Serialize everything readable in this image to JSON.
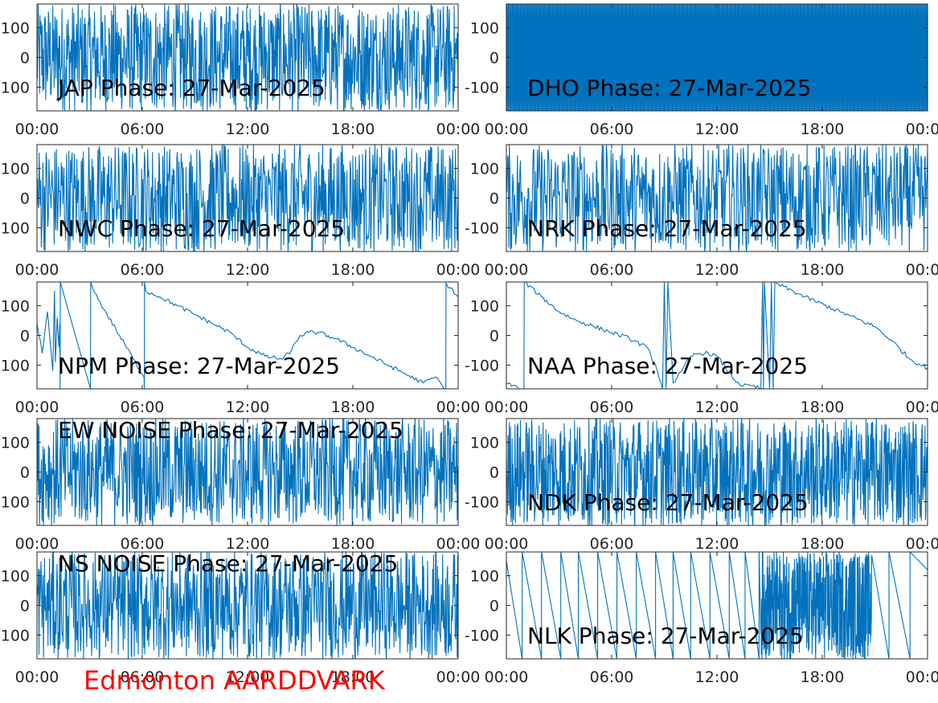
{
  "figure_label": "Edmonton AARDDVARK",
  "colors": {
    "trace": "#0072bd",
    "axis": "#262626",
    "label": "#000000",
    "footer": "#ff0000"
  },
  "x_ticks": [
    "00:00",
    "06:00",
    "12:00",
    "18:00",
    "00:00"
  ],
  "y_ticks": [
    "100",
    "0",
    "-100"
  ],
  "chart_data": [
    {
      "type": "line",
      "title": "JAP Phase: 27-Mar-2025",
      "xlim": [
        "00:00",
        "24:00"
      ],
      "ylim": [
        -180,
        180
      ],
      "style": "noise",
      "density": 320,
      "x_tick_labels": [
        "00:00",
        "06:00",
        "12:00",
        "18:00",
        "00:00"
      ],
      "y_tick_labels": [
        "100",
        "0",
        "100"
      ]
    },
    {
      "type": "line",
      "title": "DHO Phase: 27-Mar-2025",
      "xlim": [
        "00:00",
        "24:00"
      ],
      "ylim": [
        -180,
        180
      ],
      "style": "wrap",
      "density": 420,
      "x_tick_labels": [
        "00:00",
        "06:00",
        "12:00",
        "18:00",
        "00:00"
      ],
      "y_tick_labels": [
        "100",
        "0",
        "-100"
      ]
    },
    {
      "type": "line",
      "title": "NWC Phase: 27-Mar-2025",
      "xlim": [
        "00:00",
        "24:00"
      ],
      "ylim": [
        -180,
        180
      ],
      "style": "noise",
      "density": 260,
      "x_tick_labels": [
        "00:00",
        "06:00",
        "12:00",
        "18:00",
        "00:00"
      ],
      "y_tick_labels": [
        "100",
        "0",
        "100"
      ]
    },
    {
      "type": "line",
      "title": "NRK Phase: 27-Mar-2025",
      "xlim": [
        "00:00",
        "24:00"
      ],
      "ylim": [
        -180,
        180
      ],
      "style": "noise",
      "density": 240,
      "x_tick_labels": [
        "00:00",
        "06:00",
        "12:00",
        "18:00",
        "00:00"
      ],
      "y_tick_labels": [
        "100",
        "0",
        "-100"
      ]
    },
    {
      "type": "line",
      "title": "NPM Phase: 27-Mar-2025",
      "xlim": [
        "00:00",
        "24:00"
      ],
      "ylim": [
        -180,
        180
      ],
      "style": "path",
      "x": [
        0,
        0.3,
        0.6,
        0.9,
        1.0,
        1.05,
        1.15,
        1.25,
        1.3,
        1.32,
        1.33,
        3.05,
        3.06,
        3.5,
        4.5,
        5.5,
        6.1,
        6.12,
        6.13,
        6.2,
        7,
        8,
        9,
        10,
        11,
        12,
        13,
        14,
        14.5,
        15,
        15.5,
        16,
        17,
        18,
        19,
        20,
        21,
        22,
        22.7,
        23,
        23.2,
        23.3,
        23.31,
        23.32,
        24
      ],
      "y": [
        40,
        -60,
        80,
        -120,
        150,
        -90,
        60,
        -40,
        40,
        -180,
        180,
        -180,
        180,
        120,
        20,
        -80,
        -140,
        -180,
        180,
        150,
        130,
        100,
        70,
        40,
        10,
        -40,
        -70,
        -80,
        -50,
        0,
        10,
        10,
        -10,
        -40,
        -70,
        -100,
        -130,
        -160,
        -140,
        -160,
        -180,
        -180,
        180,
        175,
        130
      ]
    },
    {
      "type": "line",
      "title": "NAA Phase: 27-Mar-2025",
      "xlim": [
        "00:00",
        "24:00"
      ],
      "ylim": [
        -180,
        180
      ],
      "style": "path",
      "x": [
        0,
        0.8,
        1.0,
        1.02,
        1.03,
        2,
        3,
        4,
        5,
        6,
        7,
        8,
        8.5,
        8.9,
        9.0,
        9.1,
        9.2,
        9.5,
        10,
        10.5,
        11,
        11.5,
        12,
        12.5,
        13,
        13.5,
        14,
        14.5,
        14.6,
        14.65,
        14.7,
        15,
        15.1,
        15.2,
        15.3,
        15.35,
        15.4,
        17,
        19,
        21,
        22,
        23,
        24
      ],
      "y": [
        -160,
        -180,
        -180,
        180,
        180,
        130,
        80,
        50,
        30,
        10,
        -10,
        -40,
        -100,
        -180,
        180,
        -180,
        180,
        -160,
        -120,
        -70,
        -60,
        -60,
        -70,
        -110,
        -150,
        -170,
        -170,
        -180,
        180,
        -180,
        180,
        -180,
        180,
        -180,
        180,
        180,
        175,
        130,
        80,
        30,
        -20,
        -80,
        -110
      ]
    },
    {
      "type": "line",
      "title": "EW NOISE Phase: 27-Mar-2025",
      "xlim": [
        "00:00",
        "24:00"
      ],
      "ylim": [
        -180,
        180
      ],
      "style": "noise",
      "density": 280,
      "x_tick_labels": [
        "00:00",
        "06:00",
        "12:00",
        "18:00",
        "00:00"
      ],
      "y_tick_labels": [
        "100",
        "0",
        "100"
      ]
    },
    {
      "type": "line",
      "title": "NDK Phase: 27-Mar-2025",
      "xlim": [
        "00:00",
        "24:00"
      ],
      "ylim": [
        -180,
        180
      ],
      "style": "noise",
      "density": 340,
      "x_tick_labels": [
        "00:00",
        "06:00",
        "12:00",
        "18:00",
        "00:00"
      ],
      "y_tick_labels": [
        "100",
        "0",
        "-100"
      ]
    },
    {
      "type": "line",
      "title": "NS NOISE Phase: 27-Mar-2025",
      "xlim": [
        "00:00",
        "24:00"
      ],
      "ylim": [
        -180,
        180
      ],
      "style": "noise",
      "density": 280,
      "x_tick_labels": [
        "00:00",
        "06:00",
        "12:00",
        "18:00",
        "00:00"
      ],
      "y_tick_labels": [
        "100",
        "0",
        "100"
      ]
    },
    {
      "type": "line",
      "title": "NLK Phase: 27-Mar-2025",
      "xlim": [
        "00:00",
        "24:00"
      ],
      "ylim": [
        -180,
        180
      ],
      "style": "sawtooth",
      "resets": [
        0.9,
        2.0,
        3.1,
        4.1,
        5.2,
        6.3,
        7.4,
        8.5,
        9.5,
        10.5,
        11.6,
        12.7,
        13.6,
        14.4
      ],
      "noise_from": 14.5,
      "noise_to": 20.8,
      "tail_resets": [
        21.8,
        23.0
      ]
    }
  ]
}
